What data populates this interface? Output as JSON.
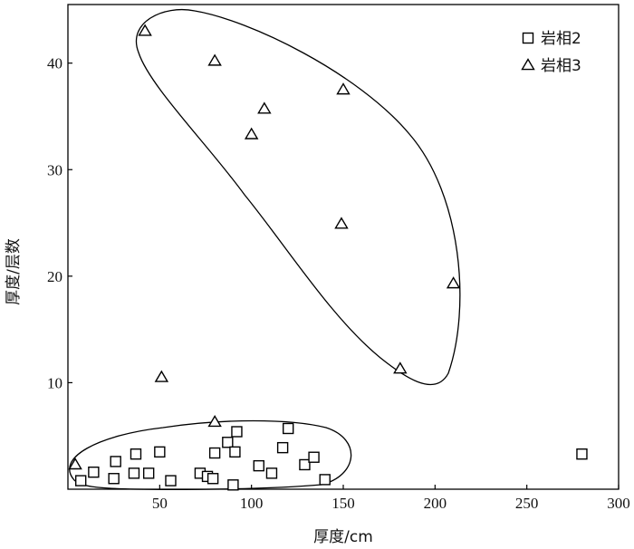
{
  "chart_data": {
    "type": "scatter",
    "xlabel": "厚度/cm",
    "ylabel": "厚度/层数",
    "xlim": [
      0,
      300
    ],
    "ylim": [
      0,
      45.5
    ],
    "xticks": [
      50,
      100,
      150,
      200,
      250,
      300
    ],
    "yticks": [
      10,
      20,
      30,
      40
    ],
    "legend_position": "top-right",
    "marker_color": "#000000",
    "series": [
      {
        "name": "岩相2",
        "marker": "square",
        "points": [
          {
            "x": 7,
            "y": 0.8
          },
          {
            "x": 14,
            "y": 1.6
          },
          {
            "x": 25,
            "y": 1.0
          },
          {
            "x": 26,
            "y": 2.6
          },
          {
            "x": 36,
            "y": 1.5
          },
          {
            "x": 37,
            "y": 3.3
          },
          {
            "x": 44,
            "y": 1.5
          },
          {
            "x": 50,
            "y": 3.5
          },
          {
            "x": 56,
            "y": 0.8
          },
          {
            "x": 72,
            "y": 1.5
          },
          {
            "x": 76,
            "y": 1.2
          },
          {
            "x": 79,
            "y": 1.0
          },
          {
            "x": 80,
            "y": 3.4
          },
          {
            "x": 87,
            "y": 4.4
          },
          {
            "x": 90,
            "y": 0.4
          },
          {
            "x": 91,
            "y": 3.5
          },
          {
            "x": 92,
            "y": 5.4
          },
          {
            "x": 104,
            "y": 2.2
          },
          {
            "x": 111,
            "y": 1.5
          },
          {
            "x": 117,
            "y": 3.9
          },
          {
            "x": 120,
            "y": 5.7
          },
          {
            "x": 129,
            "y": 2.3
          },
          {
            "x": 134,
            "y": 3.0
          },
          {
            "x": 140,
            "y": 0.9
          },
          {
            "x": 280,
            "y": 3.3
          }
        ]
      },
      {
        "name": "岩相3",
        "marker": "triangle",
        "points": [
          {
            "x": 4,
            "y": 2.3
          },
          {
            "x": 42,
            "y": 43.0
          },
          {
            "x": 51,
            "y": 10.5
          },
          {
            "x": 80,
            "y": 6.3
          },
          {
            "x": 80,
            "y": 40.2
          },
          {
            "x": 100,
            "y": 33.3
          },
          {
            "x": 107,
            "y": 35.7
          },
          {
            "x": 149,
            "y": 24.9
          },
          {
            "x": 150,
            "y": 37.5
          },
          {
            "x": 181,
            "y": 11.3
          },
          {
            "x": 210,
            "y": 19.3
          }
        ]
      }
    ]
  }
}
